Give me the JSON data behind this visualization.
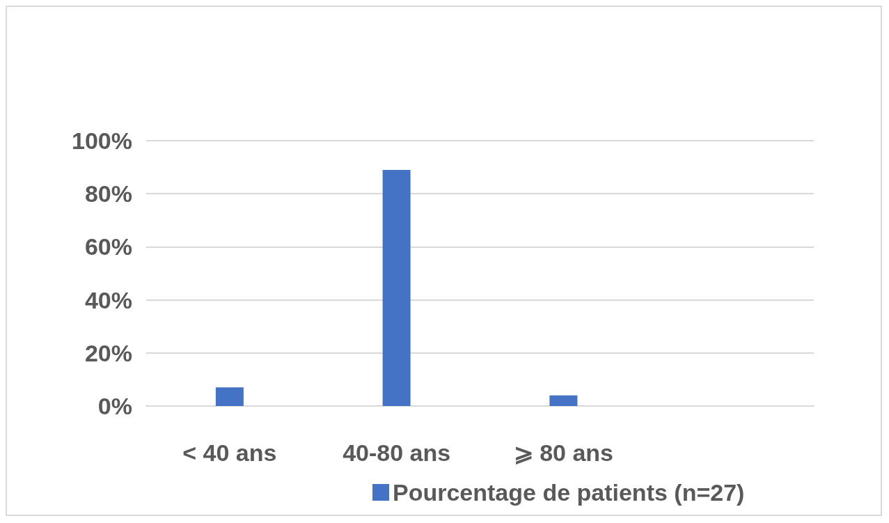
{
  "chart_data": {
    "type": "bar",
    "categories": [
      "< 40 ans",
      "40-80 ans",
      "⩾ 80 ans",
      null
    ],
    "series": [
      {
        "name": "Pourcentage de patients (n=27)",
        "color": "#4472c4",
        "values": [
          7,
          89,
          4,
          null
        ]
      }
    ],
    "ylim": [
      0,
      100
    ],
    "yticks": [
      {
        "value": 0,
        "label": "0%"
      },
      {
        "value": 20,
        "label": "20%"
      },
      {
        "value": 40,
        "label": "40%"
      },
      {
        "value": 60,
        "label": "60%"
      },
      {
        "value": 80,
        "label": "80%"
      },
      {
        "value": 100,
        "label": "100%"
      }
    ],
    "grid": "y",
    "legend": "bottom"
  }
}
